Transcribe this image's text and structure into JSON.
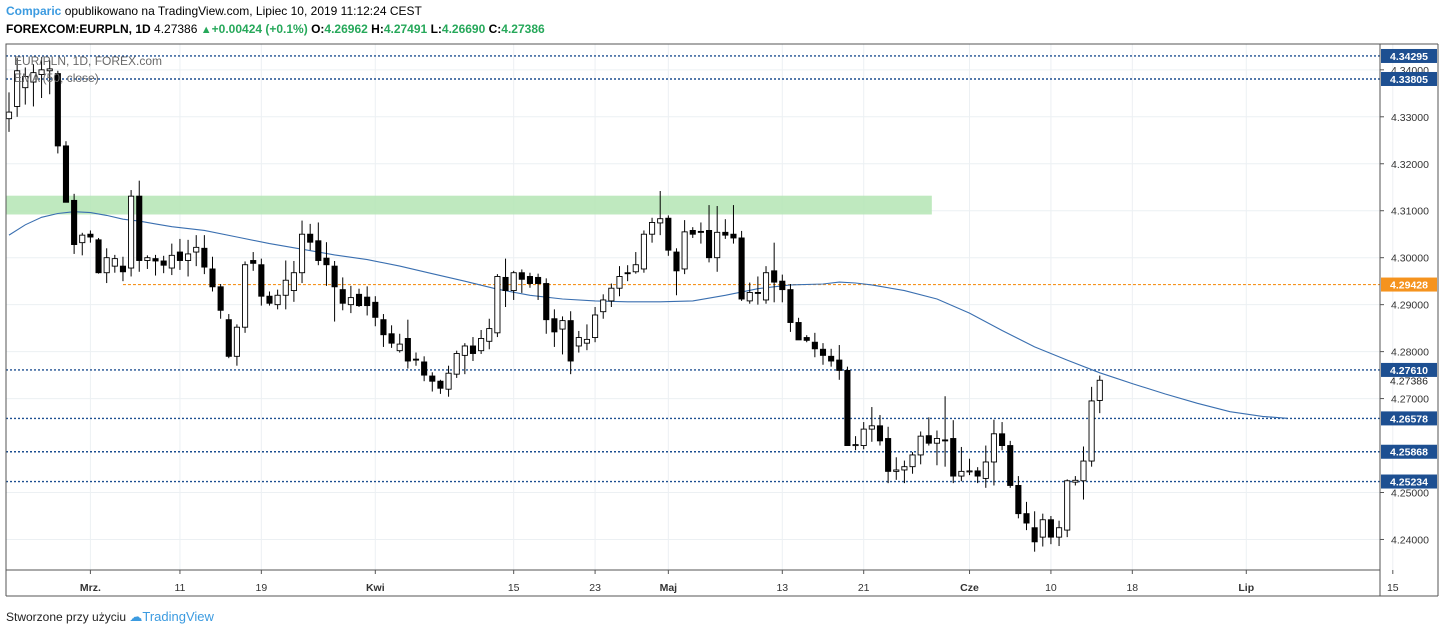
{
  "header": {
    "publisher": "Comparic",
    "published_text": "opublikowano na TradingView.com, Lipiec 10, 2019 11:12:24 CEST",
    "symbol": "FOREXCOM:EURPLN, 1D",
    "last": "4.27386",
    "change": "+0.00424 (+0.1%)",
    "o_label": "O:",
    "o_value": "4.26962",
    "h_label": "H:",
    "h_value": "4.27491",
    "l_label": "L:",
    "l_value": "4.26690",
    "c_label": "C:",
    "c_value": "4.27386"
  },
  "footer": {
    "created_with": "Stworzone przy użyciu",
    "brand": "TradingView"
  },
  "colors": {
    "up": "#ffffff",
    "down": "#000000",
    "wick": "#000000",
    "ema": "#3a6fb0",
    "level": "#1d4f91",
    "orange": "#f5931e",
    "zone": "#b4e5b4",
    "grid": "#ecf0f3",
    "label_bg": "#1d4f91",
    "last_bg": "#1f63c6"
  },
  "chart_data": {
    "type": "candlestick",
    "title": "EUR/PLN, 1D, FOREX.com",
    "indicator_label": "EMA (50, close)",
    "ylim": [
      4.2335,
      4.3455
    ],
    "y_ticks": [
      "4.34000",
      "4.33000",
      "4.32000",
      "4.31000",
      "4.30000",
      "4.29000",
      "4.28000",
      "4.27000",
      "4.25000",
      "4.24000"
    ],
    "x_ticks": [
      {
        "label": "Mrz.",
        "i": 10
      },
      {
        "label": "11",
        "i": 21
      },
      {
        "label": "19",
        "i": 31
      },
      {
        "label": "Kwi",
        "i": 45
      },
      {
        "label": "15",
        "i": 62
      },
      {
        "label": "23",
        "i": 72
      },
      {
        "label": "Maj",
        "i": 81
      },
      {
        "label": "13",
        "i": 95
      },
      {
        "label": "21",
        "i": 105
      },
      {
        "label": "Cze",
        "i": 118
      },
      {
        "label": "10",
        "i": 128
      },
      {
        "label": "18",
        "i": 138
      },
      {
        "label": "Lip",
        "i": 152
      },
      {
        "label": "15",
        "i": 170
      }
    ],
    "levels": [
      {
        "value": 4.34295,
        "label": "4.34295",
        "style": "dotted"
      },
      {
        "value": 4.33805,
        "label": "4.33805",
        "style": "dotted"
      },
      {
        "value": 4.29428,
        "label": "4.29428",
        "style": "orange",
        "from_i": 14
      },
      {
        "value": 4.2761,
        "label": "4.27610",
        "style": "dotted"
      },
      {
        "value": 4.26578,
        "label": "4.26578",
        "style": "dotted"
      },
      {
        "value": 4.25868,
        "label": "4.25868",
        "style": "dotted"
      },
      {
        "value": 4.25234,
        "label": "4.25234",
        "style": "dotted"
      }
    ],
    "last_price": {
      "value": 4.27386,
      "label": "4.27386"
    },
    "zone": {
      "from": 4.3092,
      "to": 4.3132,
      "from_i": 0,
      "to_i": 113
    },
    "candles": [
      [
        4.3296,
        4.3352,
        4.3268,
        4.331
      ],
      [
        4.3322,
        4.3425,
        4.33,
        4.3398
      ],
      [
        4.3362,
        4.3405,
        4.3326,
        4.3386
      ],
      [
        4.3374,
        4.3412,
        4.3322,
        4.3394
      ],
      [
        4.339,
        4.3427,
        4.334,
        4.34
      ],
      [
        4.3398,
        4.342,
        4.3348,
        4.3402
      ],
      [
        4.3392,
        4.3398,
        4.3222,
        4.3238
      ],
      [
        4.3238,
        4.3248,
        4.3122,
        4.3118
      ],
      [
        4.3122,
        4.3136,
        4.3008,
        4.3028
      ],
      [
        4.3032,
        4.3053,
        4.3005,
        4.3048
      ],
      [
        4.305,
        4.3058,
        4.3032,
        4.3044
      ],
      [
        4.3038,
        4.3042,
        4.2966,
        4.2968
      ],
      [
        4.2968,
        4.302,
        4.2946,
        4.3
      ],
      [
        4.2982,
        4.3006,
        4.2968,
        4.2998
      ],
      [
        4.2982,
        4.3002,
        4.295,
        4.297
      ],
      [
        4.2978,
        4.3144,
        4.296,
        4.3131
      ],
      [
        4.3131,
        4.3164,
        4.297,
        4.2994
      ],
      [
        4.2994,
        4.3005,
        4.2976,
        4.3
      ],
      [
        4.2998,
        4.3006,
        4.2962,
        4.2993
      ],
      [
        4.2993,
        4.3004,
        4.2967,
        4.2984
      ],
      [
        4.2978,
        4.303,
        4.2963,
        4.3005
      ],
      [
        4.3012,
        4.304,
        4.2974,
        4.2994
      ],
      [
        4.2994,
        4.3038,
        4.296,
        4.3008
      ],
      [
        4.3012,
        4.3048,
        4.2982,
        4.3022
      ],
      [
        4.302,
        4.3048,
        4.2965,
        4.298
      ],
      [
        4.2976,
        4.3002,
        4.2928,
        4.2938
      ],
      [
        4.2938,
        4.2944,
        4.287,
        4.2888
      ],
      [
        4.2868,
        4.288,
        4.2786,
        4.279
      ],
      [
        4.279,
        4.2858,
        4.277,
        4.2852
      ],
      [
        4.2852,
        4.2992,
        4.284,
        4.2985
      ],
      [
        4.2994,
        4.3012,
        4.2972,
        4.2988
      ],
      [
        4.2985,
        4.2998,
        4.2898,
        4.2918
      ],
      [
        4.2918,
        4.2928,
        4.2898,
        4.2903
      ],
      [
        4.29,
        4.2932,
        4.289,
        4.292
      ],
      [
        4.292,
        4.2994,
        4.289,
        4.2952
      ],
      [
        4.293,
        4.2993,
        4.2906,
        4.2968
      ],
      [
        4.2968,
        4.3079,
        4.2946,
        4.305
      ],
      [
        4.305,
        4.3072,
        4.3016,
        4.3033
      ],
      [
        4.3036,
        4.3075,
        4.2984,
        4.2994
      ],
      [
        4.2999,
        4.3033,
        4.294,
        4.2985
      ],
      [
        4.2982,
        4.2993,
        4.2864,
        4.2938
      ],
      [
        4.2932,
        4.2958,
        4.2888,
        4.2903
      ],
      [
        4.29,
        4.294,
        4.2882,
        4.2915
      ],
      [
        4.2922,
        4.2934,
        4.2895,
        4.2898
      ],
      [
        4.2916,
        4.2939,
        4.2877,
        4.2898
      ],
      [
        4.2905,
        4.2918,
        4.2854,
        4.2873
      ],
      [
        4.2868,
        4.288,
        4.281,
        4.2836
      ],
      [
        4.2838,
        4.2856,
        4.2808,
        4.2818
      ],
      [
        4.2802,
        4.2838,
        4.2798,
        4.2816
      ],
      [
        4.2828,
        4.2868,
        4.2764,
        4.278
      ],
      [
        4.2784,
        4.2798,
        4.277,
        4.2782
      ],
      [
        4.2778,
        4.279,
        4.2737,
        4.275
      ],
      [
        4.2748,
        4.2756,
        4.2715,
        4.2737
      ],
      [
        4.2737,
        4.274,
        4.271,
        4.2722
      ],
      [
        4.272,
        4.277,
        4.2704,
        4.2754
      ],
      [
        4.2752,
        4.2802,
        4.2744,
        4.2796
      ],
      [
        4.2792,
        4.2818,
        4.2752,
        4.2812
      ],
      [
        4.2812,
        4.2831,
        4.278,
        4.2796
      ],
      [
        4.2802,
        4.2846,
        4.2795,
        4.2828
      ],
      [
        4.2822,
        4.287,
        4.2805,
        4.2849
      ],
      [
        4.284,
        4.2965,
        4.2831,
        4.296
      ],
      [
        4.2958,
        4.2998,
        4.2895,
        4.293
      ],
      [
        4.293,
        4.2972,
        4.291,
        4.2968
      ],
      [
        4.2968,
        4.2975,
        4.2925,
        4.2954
      ],
      [
        4.296,
        4.2968,
        4.2936,
        4.2945
      ],
      [
        4.2958,
        4.2966,
        4.291,
        4.2945
      ],
      [
        4.2945,
        4.2956,
        4.2838,
        4.2868
      ],
      [
        4.287,
        4.289,
        4.281,
        4.2842
      ],
      [
        4.2848,
        4.2875,
        4.2794,
        4.2866
      ],
      [
        4.2866,
        4.2886,
        4.2752,
        4.278
      ],
      [
        4.2812,
        4.2844,
        4.2798,
        4.283
      ],
      [
        4.2818,
        4.2858,
        4.2803,
        4.2826
      ],
      [
        4.283,
        4.2895,
        4.282,
        4.2878
      ],
      [
        4.2885,
        4.2922,
        4.287,
        4.291
      ],
      [
        4.2908,
        4.2945,
        4.2895,
        4.2935
      ],
      [
        4.2935,
        4.2982,
        4.2918,
        4.296
      ],
      [
        4.2968,
        4.2984,
        4.295,
        4.2966
      ],
      [
        4.297,
        4.3012,
        4.2966,
        4.2985
      ],
      [
        4.2976,
        4.3058,
        4.2968,
        4.305
      ],
      [
        4.305,
        4.3085,
        4.3032,
        4.3075
      ],
      [
        4.3074,
        4.3142,
        4.3048,
        4.3083
      ],
      [
        4.3084,
        4.309,
        4.3004,
        4.3016
      ],
      [
        4.3012,
        4.302,
        4.292,
        4.2972
      ],
      [
        4.2976,
        4.308,
        4.2965,
        4.3055
      ],
      [
        4.3058,
        4.3065,
        4.3042,
        4.305
      ],
      [
        4.3056,
        4.3075,
        4.303,
        4.3055
      ],
      [
        4.3058,
        4.3112,
        4.299,
        4.3
      ],
      [
        4.3,
        4.311,
        4.297,
        4.3054
      ],
      [
        4.3054,
        4.3082,
        4.304,
        4.3048
      ],
      [
        4.305,
        4.3112,
        4.303,
        4.3042
      ],
      [
        4.3042,
        4.3057,
        4.2908,
        4.2912
      ],
      [
        4.2908,
        4.2947,
        4.2902,
        4.2926
      ],
      [
        4.2926,
        4.296,
        4.29,
        4.2924
      ],
      [
        4.291,
        4.2982,
        4.2902,
        4.2968
      ],
      [
        4.2972,
        4.3032,
        4.2905,
        4.2948
      ],
      [
        4.295,
        4.2964,
        4.2905,
        4.2932
      ],
      [
        4.2932,
        4.2944,
        4.2842,
        4.2862
      ],
      [
        4.2862,
        4.2872,
        4.2828,
        4.2825
      ],
      [
        4.283,
        4.2835,
        4.282,
        4.2824
      ],
      [
        4.282,
        4.284,
        4.2788,
        4.2806
      ],
      [
        4.2805,
        4.2818,
        4.2772,
        4.2792
      ],
      [
        4.279,
        4.2806,
        4.2768,
        4.278
      ],
      [
        4.2782,
        4.2814,
        4.274,
        4.276
      ],
      [
        4.276,
        4.2768,
        4.26,
        4.26
      ],
      [
        4.26,
        4.262,
        4.259,
        4.2602
      ],
      [
        4.26,
        4.265,
        4.2592,
        4.2635
      ],
      [
        4.2635,
        4.2682,
        4.2608,
        4.2642
      ],
      [
        4.2642,
        4.2665,
        4.26,
        4.261
      ],
      [
        4.2615,
        4.264,
        4.252,
        4.2545
      ],
      [
        4.2545,
        4.2575,
        4.2527,
        4.2548
      ],
      [
        4.2548,
        4.2568,
        4.252,
        4.2555
      ],
      [
        4.2555,
        4.2586,
        4.254,
        4.258
      ],
      [
        4.258,
        4.263,
        4.256,
        4.262
      ],
      [
        4.2621,
        4.266,
        4.26,
        4.2605
      ],
      [
        4.2605,
        4.2632,
        4.2558,
        4.2615
      ],
      [
        4.2612,
        4.2705,
        4.2555,
        4.261
      ],
      [
        4.2615,
        4.2654,
        4.252,
        4.2535
      ],
      [
        4.2535,
        4.2597,
        4.2524,
        4.2545
      ],
      [
        4.2544,
        4.2572,
        4.2537,
        4.2546
      ],
      [
        4.2546,
        4.2554,
        4.252,
        4.2535
      ],
      [
        4.253,
        4.26,
        4.251,
        4.2565
      ],
      [
        4.2565,
        4.2655,
        4.2515,
        4.2625
      ],
      [
        4.2625,
        4.265,
        4.259,
        4.26
      ],
      [
        4.26,
        4.261,
        4.251,
        4.2515
      ],
      [
        4.2515,
        4.2535,
        4.2445,
        4.2455
      ],
      [
        4.2455,
        4.248,
        4.242,
        4.2435
      ],
      [
        4.2425,
        4.246,
        4.2374,
        4.2395
      ],
      [
        4.2405,
        4.2455,
        4.2385,
        4.2442
      ],
      [
        4.2442,
        4.245,
        4.239,
        4.2405
      ],
      [
        4.2405,
        4.244,
        4.2386,
        4.2425
      ],
      [
        4.242,
        4.2528,
        4.2405,
        4.2525
      ],
      [
        4.2522,
        4.2535,
        4.2515,
        4.2526
      ],
      [
        4.2525,
        4.2598,
        4.2485,
        4.2567
      ],
      [
        4.2567,
        4.2725,
        4.2555,
        4.2695
      ],
      [
        4.2696,
        4.2749,
        4.2669,
        4.2739
      ]
    ],
    "ema": [
      [
        0,
        4.3048
      ],
      [
        2,
        4.307
      ],
      [
        4,
        4.3086
      ],
      [
        6,
        4.3094
      ],
      [
        8,
        4.3098
      ],
      [
        10,
        4.3096
      ],
      [
        12,
        4.309
      ],
      [
        14,
        4.3082
      ],
      [
        16,
        4.3078
      ],
      [
        18,
        4.3072
      ],
      [
        20,
        4.3066
      ],
      [
        24,
        4.3058
      ],
      [
        28,
        4.3044
      ],
      [
        32,
        4.303
      ],
      [
        36,
        4.3018
      ],
      [
        40,
        4.3006
      ],
      [
        44,
        4.2996
      ],
      [
        48,
        4.2982
      ],
      [
        52,
        4.2966
      ],
      [
        56,
        4.295
      ],
      [
        60,
        4.2933
      ],
      [
        64,
        4.292
      ],
      [
        68,
        4.2912
      ],
      [
        72,
        4.2908
      ],
      [
        76,
        4.2906
      ],
      [
        80,
        4.2906
      ],
      [
        84,
        4.2908
      ],
      [
        88,
        4.292
      ],
      [
        92,
        4.2934
      ],
      [
        96,
        4.2942
      ],
      [
        100,
        4.2944
      ],
      [
        102,
        4.2948
      ],
      [
        104,
        4.2946
      ],
      [
        106,
        4.2942
      ],
      [
        110,
        4.293
      ],
      [
        114,
        4.2912
      ],
      [
        118,
        4.2882
      ],
      [
        122,
        4.2845
      ],
      [
        126,
        4.281
      ],
      [
        130,
        4.2782
      ],
      [
        134,
        4.2755
      ],
      [
        138,
        4.2732
      ],
      [
        142,
        4.271
      ],
      [
        146,
        4.269
      ],
      [
        150,
        4.2672
      ],
      [
        154,
        4.2662
      ],
      [
        157,
        4.2658
      ]
    ]
  }
}
